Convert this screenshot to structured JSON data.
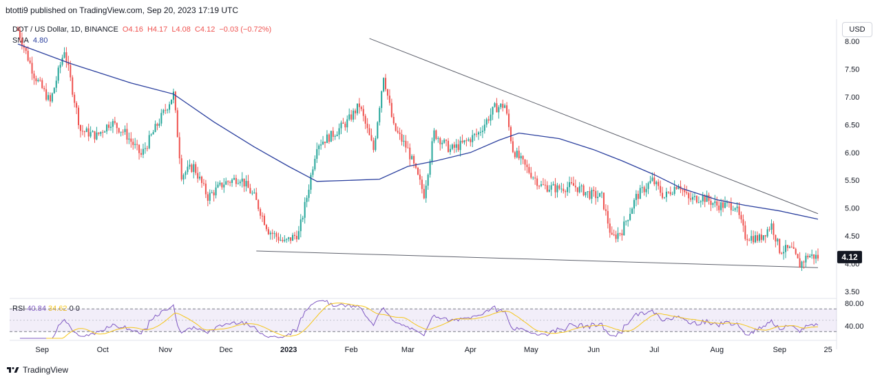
{
  "header": {
    "published_by": "btotti9 published on TradingView.com, Sep 20, 2023 17:19 UTC"
  },
  "legend": {
    "symbol": "DOT / US Dollar, 1D, BINANCE",
    "open": "O4.16",
    "high": "H4.17",
    "low": "L4.08",
    "close": "C4.12",
    "change": "−0.03 (−0.72%)",
    "sma_label": "SMA",
    "sma_value": "4.80"
  },
  "currency_button": "USD",
  "rsi_legend": {
    "label": "RSI",
    "value1": "40.84",
    "value2": "34.62",
    "extra1": "0",
    "extra2": "0"
  },
  "footer": {
    "brand": "TradingView"
  },
  "colors": {
    "up": "#26a69a",
    "down": "#ef5350",
    "sma": "#2a3f9e",
    "rsi": "#7e57c2",
    "rsi_ma": "#f5c518",
    "trendline": "#5d606b",
    "last_price_bg": "#131722"
  },
  "chart_data": {
    "type": "candlestick",
    "price_axis": {
      "ticks": [
        "8.00",
        "7.50",
        "7.00",
        "6.50",
        "6.00",
        "5.50",
        "5.00",
        "4.50",
        "4.00",
        "3.50"
      ],
      "range": [
        3.5,
        8.0
      ]
    },
    "last_price_label": "4.12",
    "x_axis": {
      "tick_labels": [
        "Sep",
        "Oct",
        "Nov",
        "Dec",
        "2023",
        "Feb",
        "Mar",
        "Apr",
        "May",
        "Jun",
        "Jul",
        "Aug",
        "Sep",
        "25"
      ]
    },
    "rsi_axis": {
      "ticks": [
        "80.00",
        "40.00"
      ],
      "bands": [
        70,
        30
      ]
    },
    "price_path": [
      [
        "2022-08-20",
        8.2
      ],
      [
        "2022-08-28",
        7.4
      ],
      [
        "2022-09-05",
        6.9
      ],
      [
        "2022-09-12",
        7.85
      ],
      [
        "2022-09-20",
        6.4
      ],
      [
        "2022-09-28",
        6.3
      ],
      [
        "2022-10-05",
        6.55
      ],
      [
        "2022-10-12",
        6.35
      ],
      [
        "2022-10-20",
        5.95
      ],
      [
        "2022-10-28",
        6.5
      ],
      [
        "2022-11-05",
        7.05
      ],
      [
        "2022-11-09",
        5.6
      ],
      [
        "2022-11-15",
        5.75
      ],
      [
        "2022-11-22",
        5.2
      ],
      [
        "2022-11-30",
        5.45
      ],
      [
        "2022-12-08",
        5.55
      ],
      [
        "2022-12-15",
        5.2
      ],
      [
        "2022-12-22",
        4.6
      ],
      [
        "2022-12-30",
        4.38
      ],
      [
        "2023-01-06",
        4.55
      ],
      [
        "2023-01-10",
        5.2
      ],
      [
        "2023-01-15",
        6.15
      ],
      [
        "2023-01-22",
        6.3
      ],
      [
        "2023-01-30",
        6.55
      ],
      [
        "2023-02-05",
        6.85
      ],
      [
        "2023-02-12",
        6.05
      ],
      [
        "2023-02-17",
        7.4
      ],
      [
        "2023-02-22",
        6.45
      ],
      [
        "2023-03-01",
        6.05
      ],
      [
        "2023-03-09",
        5.25
      ],
      [
        "2023-03-14",
        6.35
      ],
      [
        "2023-03-22",
        6.05
      ],
      [
        "2023-03-28",
        6.15
      ],
      [
        "2023-04-05",
        6.35
      ],
      [
        "2023-04-13",
        6.8
      ],
      [
        "2023-04-18",
        6.85
      ],
      [
        "2023-04-22",
        6.05
      ],
      [
        "2023-04-28",
        5.75
      ],
      [
        "2023-05-06",
        5.4
      ],
      [
        "2023-05-14",
        5.35
      ],
      [
        "2023-05-22",
        5.4
      ],
      [
        "2023-05-30",
        5.25
      ],
      [
        "2023-06-05",
        5.2
      ],
      [
        "2023-06-10",
        4.45
      ],
      [
        "2023-06-15",
        4.6
      ],
      [
        "2023-06-22",
        5.2
      ],
      [
        "2023-06-30",
        5.5
      ],
      [
        "2023-07-06",
        5.2
      ],
      [
        "2023-07-13",
        5.45
      ],
      [
        "2023-07-18",
        5.15
      ],
      [
        "2023-07-25",
        5.2
      ],
      [
        "2023-08-01",
        5.05
      ],
      [
        "2023-08-10",
        5.05
      ],
      [
        "2023-08-15",
        4.5
      ],
      [
        "2023-08-22",
        4.45
      ],
      [
        "2023-08-28",
        4.7
      ],
      [
        "2023-09-01",
        4.25
      ],
      [
        "2023-09-07",
        4.25
      ],
      [
        "2023-09-11",
        3.98
      ],
      [
        "2023-09-15",
        4.15
      ],
      [
        "2023-09-20",
        4.12
      ]
    ],
    "sma_path": [
      [
        "2022-08-20",
        7.95
      ],
      [
        "2022-09-15",
        7.6
      ],
      [
        "2022-10-15",
        7.25
      ],
      [
        "2022-11-05",
        7.05
      ],
      [
        "2022-11-25",
        6.55
      ],
      [
        "2022-12-15",
        6.1
      ],
      [
        "2023-01-01",
        5.75
      ],
      [
        "2023-01-15",
        5.48
      ],
      [
        "2023-02-01",
        5.5
      ],
      [
        "2023-02-15",
        5.52
      ],
      [
        "2023-03-01",
        5.75
      ],
      [
        "2023-03-15",
        5.85
      ],
      [
        "2023-04-01",
        6.0
      ],
      [
        "2023-04-15",
        6.22
      ],
      [
        "2023-04-25",
        6.35
      ],
      [
        "2023-05-15",
        6.25
      ],
      [
        "2023-06-01",
        6.05
      ],
      [
        "2023-06-15",
        5.85
      ],
      [
        "2023-07-01",
        5.6
      ],
      [
        "2023-07-15",
        5.35
      ],
      [
        "2023-08-01",
        5.15
      ],
      [
        "2023-08-15",
        5.05
      ],
      [
        "2023-09-01",
        4.95
      ],
      [
        "2023-09-20",
        4.8
      ]
    ],
    "trendlines": [
      {
        "from": [
          "2023-02-10",
          8.05
        ],
        "to": [
          "2023-09-20",
          4.9
        ]
      },
      {
        "from": [
          "2022-12-16",
          4.23
        ],
        "to": [
          "2023-09-20",
          3.93
        ]
      }
    ]
  }
}
